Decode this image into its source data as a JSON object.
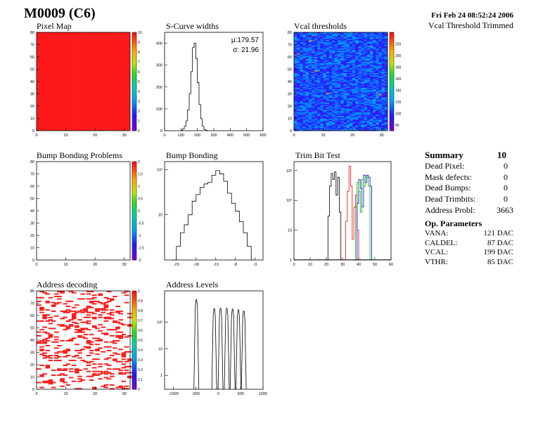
{
  "header": {
    "title": "M0009 (C6)",
    "date": "Fri Feb 24 08:52:24 2006",
    "vcal_trim": "Vcal Threshold Trimmed"
  },
  "summary": {
    "title": "Summary",
    "total": "10",
    "rows": [
      {
        "label": "Dead Pixel:",
        "value": "0"
      },
      {
        "label": "Mask defects:",
        "value": "0"
      },
      {
        "label": "Dead Bumps:",
        "value": "0"
      },
      {
        "label": "Dead Trimbits:",
        "value": "0"
      },
      {
        "label": "Address Probl:",
        "value": "3663"
      }
    ]
  },
  "op_params": {
    "title": "Op. Parameters",
    "rows": [
      {
        "label": "VANA:",
        "value": "121 DAC"
      },
      {
        "label": "CALDEL:",
        "value": "87 DAC"
      },
      {
        "label": "VCAL:",
        "value": "199 DAC"
      },
      {
        "label": "VTHR:",
        "value": "85 DAC"
      }
    ]
  },
  "chart_data": [
    {
      "id": "pixel_map",
      "type": "heatmap",
      "title": "Pixel Map",
      "xlim": [
        0,
        32
      ],
      "ylim": [
        0,
        80
      ],
      "xticks": [
        "0",
        "10",
        "20",
        "30"
      ],
      "yticks": [
        "0",
        "10",
        "20",
        "30",
        "40",
        "50",
        "60",
        "70",
        "80"
      ],
      "zlim": [
        0,
        10
      ],
      "zticks": [
        "0",
        "1",
        "2",
        "3",
        "4",
        "5",
        "6",
        "7",
        "8",
        "9",
        "10"
      ],
      "uniform_value": 10,
      "fill_color": "#ff1a1a"
    },
    {
      "id": "scurve_widths",
      "type": "histogram",
      "title": "S-Curve widths",
      "xlim": [
        0,
        600
      ],
      "ylim": [
        0,
        450
      ],
      "xticks": [
        "0",
        "100",
        "200",
        "300",
        "400",
        "500",
        "600"
      ],
      "yticks": [
        "0",
        "100",
        "200",
        "300",
        "400"
      ],
      "mean_label": "μ:179.57",
      "sigma_label": "σ: 21.96",
      "bin_width": 10,
      "bins": [
        {
          "x": 100,
          "y": 2
        },
        {
          "x": 110,
          "y": 8
        },
        {
          "x": 120,
          "y": 20
        },
        {
          "x": 130,
          "y": 45
        },
        {
          "x": 140,
          "y": 95
        },
        {
          "x": 150,
          "y": 170
        },
        {
          "x": 160,
          "y": 270
        },
        {
          "x": 170,
          "y": 380
        },
        {
          "x": 180,
          "y": 400
        },
        {
          "x": 190,
          "y": 330
        },
        {
          "x": 200,
          "y": 220
        },
        {
          "x": 210,
          "y": 120
        },
        {
          "x": 220,
          "y": 55
        },
        {
          "x": 230,
          "y": 20
        },
        {
          "x": 240,
          "y": 6
        },
        {
          "x": 250,
          "y": 2
        }
      ]
    },
    {
      "id": "vcal_thresholds",
      "type": "heatmap",
      "title": "Vcal thresholds",
      "xlim": [
        0,
        32
      ],
      "ylim": [
        0,
        80
      ],
      "xticks": [
        "0",
        "10",
        "20",
        "30"
      ],
      "yticks": [
        "0",
        "10",
        "20",
        "30",
        "40",
        "50",
        "60",
        "70",
        "80"
      ],
      "zlim": [
        70,
        240
      ],
      "zticks": [
        "80",
        "100",
        "120",
        "140",
        "160",
        "180",
        "200",
        "220"
      ],
      "typical_value": 105,
      "spread": 18
    },
    {
      "id": "bump_bonding_problems",
      "type": "heatmap",
      "title": "Bump Bonding Problems",
      "xlim": [
        0,
        32
      ],
      "ylim": [
        0,
        80
      ],
      "xticks": [
        "0",
        "10",
        "20",
        "30"
      ],
      "yticks": [
        "0",
        "10",
        "20",
        "30",
        "40",
        "50",
        "60",
        "70",
        "80"
      ],
      "zlim": [
        -2,
        2
      ],
      "zticks": [
        "-2",
        "-1.5",
        "-1",
        "-0.5",
        "0",
        "0.5",
        "1",
        "1.5",
        "2"
      ],
      "empty": true
    },
    {
      "id": "bump_bonding",
      "type": "histogram",
      "title": "Bump Bonding",
      "xlim": [
        -26,
        -1
      ],
      "log_y": true,
      "ylim": [
        1,
        150
      ],
      "xticks": [
        "-23",
        "-18",
        "-13",
        "-8",
        "-3"
      ],
      "yticks": [
        "10",
        "10²"
      ],
      "bin_width": 1,
      "bins": [
        {
          "x": -24,
          "y": 1
        },
        {
          "x": -23,
          "y": 2
        },
        {
          "x": -22,
          "y": 4
        },
        {
          "x": -21,
          "y": 6
        },
        {
          "x": -20,
          "y": 10
        },
        {
          "x": -19,
          "y": 20
        },
        {
          "x": -18,
          "y": 28
        },
        {
          "x": -17,
          "y": 40
        },
        {
          "x": -16,
          "y": 48
        },
        {
          "x": -15,
          "y": 52
        },
        {
          "x": -14,
          "y": 75
        },
        {
          "x": -13,
          "y": 95
        },
        {
          "x": -12,
          "y": 80
        },
        {
          "x": -11,
          "y": 55
        },
        {
          "x": -10,
          "y": 30
        },
        {
          "x": -9,
          "y": 18
        },
        {
          "x": -8,
          "y": 12
        },
        {
          "x": -7,
          "y": 7
        },
        {
          "x": -6,
          "y": 4
        },
        {
          "x": -5,
          "y": 2
        },
        {
          "x": -4,
          "y": 1
        }
      ]
    },
    {
      "id": "trim_bit_test",
      "type": "line",
      "title": "Trim Bit Test",
      "xlim": [
        0,
        60
      ],
      "log_y": true,
      "ylim": [
        1,
        2000
      ],
      "xticks": [
        "0",
        "10",
        "20",
        "30",
        "40",
        "50",
        "60"
      ],
      "yticks": [
        "1",
        "10",
        "10²",
        "10³"
      ],
      "series": [
        {
          "color": "#000000",
          "points": [
            [
              20,
              1
            ],
            [
              21,
              30
            ],
            [
              22,
              300
            ],
            [
              23,
              800
            ],
            [
              24,
              500
            ],
            [
              25,
              900
            ],
            [
              26,
              150
            ],
            [
              27,
              600
            ],
            [
              28,
              40
            ],
            [
              29,
              1
            ]
          ]
        },
        {
          "color": "#ff0000",
          "points": [
            [
              31,
              1
            ],
            [
              32,
              20
            ],
            [
              33,
              200
            ],
            [
              34,
              1400
            ],
            [
              35,
              300
            ],
            [
              36,
              5
            ],
            [
              37,
              60
            ],
            [
              38,
              150
            ],
            [
              39,
              10
            ],
            [
              40,
              1
            ]
          ]
        },
        {
          "color": "#0000ff",
          "points": [
            [
              38,
              1
            ],
            [
              39,
              80
            ],
            [
              40,
              500
            ],
            [
              41,
              250
            ],
            [
              42,
              60
            ],
            [
              43,
              700
            ],
            [
              44,
              400
            ],
            [
              45,
              700
            ],
            [
              46,
              600
            ],
            [
              47,
              300
            ],
            [
              48,
              1
            ]
          ]
        },
        {
          "color": "#00aa00",
          "points": [
            [
              37,
              1
            ],
            [
              38,
              60
            ],
            [
              39,
              400
            ],
            [
              40,
              200
            ],
            [
              41,
              40
            ],
            [
              42,
              500
            ],
            [
              43,
              300
            ],
            [
              44,
              650
            ],
            [
              45,
              600
            ],
            [
              46,
              300
            ],
            [
              47,
              1
            ]
          ]
        }
      ]
    },
    {
      "id": "address_decoding",
      "type": "heatmap",
      "title": "Address decoding",
      "xlim": [
        0,
        32
      ],
      "ylim": [
        0,
        80
      ],
      "xticks": [
        "0",
        "10",
        "20",
        "30"
      ],
      "yticks": [
        "0",
        "10",
        "20",
        "30",
        "40",
        "50",
        "60",
        "70",
        "80"
      ],
      "zlim": [
        0,
        1
      ],
      "zticks": [
        "0",
        "0.1",
        "0.2",
        "0.3",
        "0.4",
        "0.5",
        "0.6",
        "0.7",
        "0.8",
        "0.9",
        "1"
      ],
      "hit_color": "#ff1a1a",
      "hit_fraction": 0.16
    },
    {
      "id": "address_levels",
      "type": "histogram",
      "title": "Address Levels",
      "xlim": [
        -1200,
        1000
      ],
      "log_y": true,
      "ylim": [
        0.3,
        1500
      ],
      "xticks": [
        "-1000",
        "-500",
        "0",
        "500",
        "1000"
      ],
      "yticks": [
        "1",
        "10",
        "10²"
      ],
      "peaks": [
        {
          "x": -490,
          "y": 700
        },
        {
          "x": -90,
          "y": 320
        },
        {
          "x": 50,
          "y": 330
        },
        {
          "x": 190,
          "y": 330
        },
        {
          "x": 320,
          "y": 310
        },
        {
          "x": 450,
          "y": 290
        },
        {
          "x": 570,
          "y": 260
        }
      ]
    }
  ]
}
